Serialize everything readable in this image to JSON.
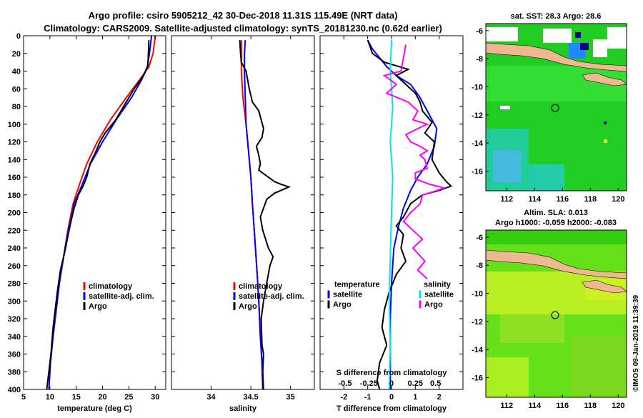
{
  "title_line1": "Argo profile: csiro 5905212_42 30-Dec-2018 11.31S 115.49E (NRT data)",
  "title_line2": "Climatology: CARS2009. Satellite-adjusted climatology: synTS_20181230.nc (0.62d earlier)",
  "credit": "©IMOS 09-Jan-2019 11:39:39",
  "colors": {
    "climatology": "#ff0000",
    "satellite": "#0000ff",
    "argo": "#000000",
    "s_diff": "#ff00ff",
    "s_sat": "#00e5e5"
  },
  "chart_data": [
    {
      "type": "line",
      "name": "temperature",
      "xlabel": "temperature (deg C)",
      "xlim": [
        5,
        32
      ],
      "xticks": [
        5,
        10,
        15,
        20,
        25,
        30
      ],
      "ylim": [
        0,
        400
      ],
      "yticks": [
        0,
        20,
        40,
        60,
        80,
        100,
        120,
        140,
        160,
        180,
        200,
        220,
        240,
        260,
        280,
        300,
        320,
        340,
        360,
        380,
        400
      ],
      "legend": [
        "climatology",
        "satellite-adj. clim.",
        "Argo"
      ],
      "series": [
        {
          "name": "climatology",
          "color": "climatology",
          "points": [
            [
              30,
              0
            ],
            [
              29.6,
              20
            ],
            [
              28.8,
              35
            ],
            [
              27,
              50
            ],
            [
              24.5,
              70
            ],
            [
              21.5,
              95
            ],
            [
              19,
              120
            ],
            [
              17,
              145
            ],
            [
              15.5,
              170
            ],
            [
              14.4,
              190
            ],
            [
              13.4,
              220
            ],
            [
              12.6,
              250
            ],
            [
              11.8,
              280
            ],
            [
              11.2,
              310
            ],
            [
              10.6,
              340
            ],
            [
              10.1,
              370
            ],
            [
              9.8,
              400
            ]
          ]
        },
        {
          "name": "satellite-adj. clim.",
          "color": "satellite",
          "points": [
            [
              29.3,
              0
            ],
            [
              28.9,
              20
            ],
            [
              28.5,
              35
            ],
            [
              27.4,
              50
            ],
            [
              25.5,
              70
            ],
            [
              22.6,
              95
            ],
            [
              20,
              120
            ],
            [
              17.7,
              145
            ],
            [
              16,
              170
            ],
            [
              14.6,
              190
            ],
            [
              13.5,
              220
            ],
            [
              12.6,
              250
            ],
            [
              11.8,
              280
            ],
            [
              11.2,
              310
            ],
            [
              10.6,
              340
            ],
            [
              10.1,
              370
            ],
            [
              9.8,
              400
            ]
          ]
        },
        {
          "name": "Argo",
          "color": "argo",
          "points": [
            [
              28.8,
              5
            ],
            [
              28.7,
              20
            ],
            [
              28.6,
              35
            ],
            [
              27.8,
              45
            ],
            [
              26,
              60
            ],
            [
              24.5,
              75
            ],
            [
              22.5,
              95
            ],
            [
              20.5,
              110
            ],
            [
              19.5,
              120
            ],
            [
              18.8,
              130
            ],
            [
              17.6,
              145
            ],
            [
              17,
              160
            ],
            [
              16.3,
              170
            ],
            [
              15.4,
              180
            ],
            [
              14.6,
              195
            ],
            [
              14,
              210
            ],
            [
              13.3,
              230
            ],
            [
              12.8,
              245
            ],
            [
              12,
              265
            ],
            [
              11.4,
              290
            ],
            [
              11,
              310
            ],
            [
              10.6,
              330
            ],
            [
              10.2,
              360
            ],
            [
              9.8,
              380
            ],
            [
              9.4,
              400
            ]
          ]
        }
      ]
    },
    {
      "type": "line",
      "name": "salinity",
      "xlabel": "salinity",
      "xlim": [
        33.5,
        35.3
      ],
      "xticks": [
        34,
        34.5,
        35
      ],
      "ylim": [
        0,
        400
      ],
      "legend": [
        "climatology",
        "satellite-adj. clim.",
        "Argo"
      ],
      "series": [
        {
          "name": "climatology",
          "color": "climatology",
          "points": [
            [
              34.38,
              5
            ],
            [
              34.38,
              20
            ],
            [
              34.38,
              40
            ],
            [
              34.4,
              70
            ],
            [
              34.44,
              100
            ],
            [
              34.47,
              130
            ],
            [
              34.5,
              160
            ],
            [
              34.52,
              190
            ],
            [
              34.55,
              230
            ],
            [
              34.58,
              270
            ],
            [
              34.6,
              300
            ],
            [
              34.62,
              340
            ],
            [
              34.64,
              370
            ],
            [
              34.65,
              400
            ]
          ]
        },
        {
          "name": "satellite-adj. clim.",
          "color": "satellite",
          "points": [
            [
              34.43,
              5
            ],
            [
              34.42,
              20
            ],
            [
              34.42,
              40
            ],
            [
              34.43,
              70
            ],
            [
              34.44,
              100
            ],
            [
              34.47,
              130
            ],
            [
              34.5,
              160
            ],
            [
              34.52,
              190
            ],
            [
              34.55,
              230
            ],
            [
              34.58,
              270
            ],
            [
              34.6,
              300
            ],
            [
              34.62,
              340
            ],
            [
              34.64,
              370
            ],
            [
              34.65,
              400
            ]
          ]
        },
        {
          "name": "Argo",
          "color": "argo",
          "points": [
            [
              34.36,
              5
            ],
            [
              34.37,
              20
            ],
            [
              34.38,
              30
            ],
            [
              34.44,
              40
            ],
            [
              34.48,
              60
            ],
            [
              34.52,
              75
            ],
            [
              34.56,
              80
            ],
            [
              34.6,
              85
            ],
            [
              34.63,
              95
            ],
            [
              34.66,
              105
            ],
            [
              34.64,
              115
            ],
            [
              34.57,
              125
            ],
            [
              34.6,
              135
            ],
            [
              34.62,
              145
            ],
            [
              34.6,
              152
            ],
            [
              34.72,
              160
            ],
            [
              34.8,
              165
            ],
            [
              34.88,
              168
            ],
            [
              34.98,
              171
            ],
            [
              34.8,
              178
            ],
            [
              34.7,
              185
            ],
            [
              34.66,
              195
            ],
            [
              34.62,
              205
            ],
            [
              34.65,
              220
            ],
            [
              34.72,
              240
            ],
            [
              34.78,
              250
            ],
            [
              34.74,
              260
            ],
            [
              34.7,
              280
            ],
            [
              34.66,
              300
            ],
            [
              34.63,
              320
            ],
            [
              34.64,
              350
            ],
            [
              34.66,
              360
            ],
            [
              34.65,
              380
            ],
            [
              34.66,
              400
            ]
          ]
        }
      ]
    },
    {
      "type": "line",
      "name": "differences",
      "xlabel": "T difference from climatology",
      "xlabel_top": "S difference from climatology",
      "xlim": [
        -3,
        3
      ],
      "xticks": [
        -2,
        -1,
        0,
        1,
        2
      ],
      "xticks_s": [
        "-0.5",
        "-0.25",
        "0",
        "0.25",
        "0.5"
      ],
      "xticks_s_pos": [
        -1.95,
        -0.95,
        0,
        1,
        1.85
      ],
      "ylim": [
        0,
        400
      ],
      "legend_left_title": "temperature",
      "legend_right_title": "salinity",
      "legend_left": [
        "satellite",
        "Argo"
      ],
      "legend_right": [
        "satellite",
        "Argo"
      ],
      "series": [
        {
          "name": "T satellite",
          "color": "satellite",
          "points": [
            [
              -1,
              5
            ],
            [
              -0.8,
              15
            ],
            [
              -0.5,
              25
            ],
            [
              -0.2,
              35
            ],
            [
              0.2,
              45
            ],
            [
              0.8,
              55
            ],
            [
              1.2,
              70
            ],
            [
              1.6,
              90
            ],
            [
              1.9,
              105
            ],
            [
              1.8,
              125
            ],
            [
              1.5,
              145
            ],
            [
              1.1,
              160
            ],
            [
              0.8,
              175
            ],
            [
              0.5,
              195
            ],
            [
              0.3,
              215
            ],
            [
              0.1,
              240
            ],
            [
              0,
              280
            ],
            [
              -0.05,
              320
            ],
            [
              -0.05,
              360
            ],
            [
              -0.05,
              400
            ]
          ]
        },
        {
          "name": "T Argo",
          "color": "argo",
          "points": [
            [
              -1,
              5
            ],
            [
              -0.8,
              20
            ],
            [
              -0.3,
              30
            ],
            [
              0.7,
              38
            ],
            [
              0.2,
              45
            ],
            [
              0.6,
              55
            ],
            [
              1,
              65
            ],
            [
              1.2,
              75
            ],
            [
              1.3,
              85
            ],
            [
              1.7,
              98
            ],
            [
              1.4,
              110
            ],
            [
              1.8,
              120
            ],
            [
              1.7,
              140
            ],
            [
              2,
              155
            ],
            [
              2.3,
              165
            ],
            [
              2.5,
              170
            ],
            [
              2,
              175
            ],
            [
              1.3,
              180
            ],
            [
              0.8,
              190
            ],
            [
              0.5,
              205
            ],
            [
              0.2,
              215
            ],
            [
              0.5,
              225
            ],
            [
              0.4,
              240
            ],
            [
              0.6,
              255
            ],
            [
              0.2,
              270
            ],
            [
              -0.1,
              290
            ],
            [
              -0.3,
              310
            ],
            [
              -0.4,
              330
            ],
            [
              -0.2,
              350
            ],
            [
              -0.5,
              370
            ],
            [
              -0.6,
              390
            ],
            [
              -0.5,
              400
            ]
          ]
        },
        {
          "name": "S satellite",
          "color": "s_sat",
          "points": [
            [
              0,
              5
            ],
            [
              -0.05,
              40
            ],
            [
              0.05,
              80
            ],
            [
              -0.05,
              120
            ],
            [
              0.05,
              160
            ],
            [
              0,
              200
            ],
            [
              -0.05,
              250
            ],
            [
              -0.1,
              300
            ],
            [
              -0.05,
              350
            ],
            [
              -0.1,
              400
            ]
          ]
        },
        {
          "name": "S Argo",
          "color": "s_diff",
          "points": [
            [
              0.6,
              10
            ],
            [
              0.5,
              25
            ],
            [
              0.4,
              40
            ],
            [
              -0.3,
              45
            ],
            [
              0.2,
              55
            ],
            [
              -0.2,
              65
            ],
            [
              0.7,
              75
            ],
            [
              1.1,
              85
            ],
            [
              0.9,
              95
            ],
            [
              1.5,
              100
            ],
            [
              1.1,
              105
            ],
            [
              0.6,
              112
            ],
            [
              0.8,
              120
            ],
            [
              1.2,
              125
            ],
            [
              1.5,
              130
            ],
            [
              1.2,
              135
            ],
            [
              1.4,
              140
            ],
            [
              1.5,
              150
            ],
            [
              1,
              155
            ],
            [
              1,
              162
            ],
            [
              1.6,
              168
            ],
            [
              2.2,
              172
            ],
            [
              1.8,
              176
            ],
            [
              1.3,
              180
            ],
            [
              1.2,
              190
            ],
            [
              0.8,
              200
            ],
            [
              0.5,
              210
            ],
            [
              0.9,
              220
            ],
            [
              1.3,
              230
            ],
            [
              0.9,
              240
            ],
            [
              1.4,
              255
            ],
            [
              1.1,
              265
            ],
            [
              1.5,
              275
            ]
          ]
        }
      ]
    },
    {
      "type": "heatmap",
      "name": "sst_map",
      "title": "sat. SST: 28.3 Argo: 28.6",
      "xticks": [
        112,
        114,
        116,
        118,
        120
      ],
      "yticks": [
        -6,
        -8,
        -10,
        -12,
        -14,
        -16
      ],
      "xlim": [
        110.5,
        120.6
      ],
      "ylim": [
        -17.4,
        -5.5
      ],
      "argo_lon": 115.49,
      "argo_lat": -11.31
    },
    {
      "type": "heatmap",
      "name": "sla_map",
      "title": "Altim. SLA: 0.013",
      "subtitle": "Argo h1000: -0.059 h2000: -0.083",
      "xticks": [
        112,
        114,
        116,
        118,
        120
      ],
      "yticks": [
        -6,
        -8,
        -10,
        -12,
        -14,
        -16
      ],
      "xlim": [
        110.5,
        120.6
      ],
      "ylim": [
        -17.4,
        -5.5
      ],
      "argo_lon": 115.49,
      "argo_lat": -11.31
    }
  ]
}
